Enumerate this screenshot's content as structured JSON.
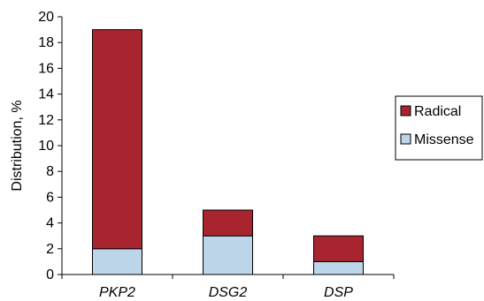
{
  "chart_data": {
    "type": "bar",
    "stacked": true,
    "categories": [
      "PKP2",
      "DSG2",
      "DSP"
    ],
    "series": [
      {
        "name": "Missense",
        "values": [
          2,
          3,
          1
        ],
        "color": "#bdd5e8"
      },
      {
        "name": "Radical",
        "values": [
          17,
          2,
          2
        ],
        "color": "#a8252f"
      }
    ],
    "ylabel": "Distribution, %",
    "xlabel": "",
    "ylim": [
      0,
      20
    ],
    "yticks": [
      0,
      2,
      4,
      6,
      8,
      10,
      12,
      14,
      16,
      18,
      20
    ],
    "grid": false,
    "legend": {
      "placement": "right",
      "order": [
        "Radical",
        "Missense"
      ]
    }
  }
}
